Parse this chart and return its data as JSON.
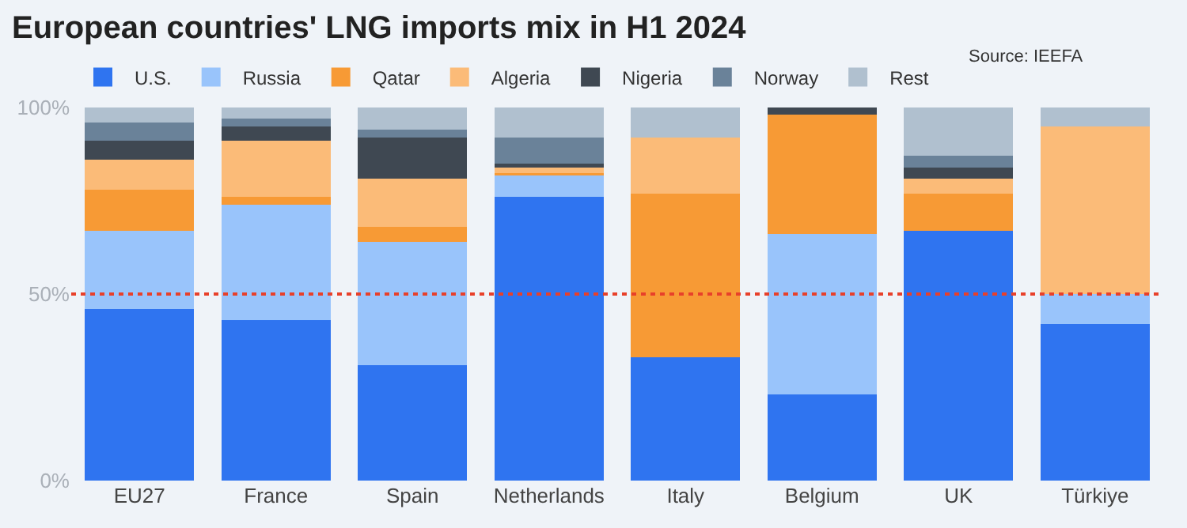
{
  "chart_data": {
    "type": "bar",
    "stacked": true,
    "title": "European countries' LNG imports mix in H1 2024",
    "categories": [
      "EU27",
      "France",
      "Spain",
      "Netherlands",
      "Italy",
      "Belgium",
      "UK",
      "Türkiye"
    ],
    "series": [
      {
        "name": "U.S.",
        "color": "#2f74f0",
        "values": [
          46,
          43,
          31,
          76,
          33,
          23,
          67,
          42
        ]
      },
      {
        "name": "Russia",
        "color": "#99c4fb",
        "values": [
          21,
          31,
          33,
          6,
          0,
          43,
          0,
          8
        ]
      },
      {
        "name": "Qatar",
        "color": "#f79a35",
        "values": [
          11,
          2,
          4,
          0.5,
          44,
          32,
          10,
          0
        ]
      },
      {
        "name": "Algeria",
        "color": "#fbbb78",
        "values": [
          8,
          15,
          13,
          1.5,
          15,
          0,
          4,
          45
        ]
      },
      {
        "name": "Nigeria",
        "color": "#3f4852",
        "values": [
          5,
          4,
          11,
          1,
          0,
          2,
          3,
          0
        ]
      },
      {
        "name": "Norway",
        "color": "#6a8299",
        "values": [
          5,
          2,
          2,
          7,
          0,
          0,
          3,
          0
        ]
      },
      {
        "name": "Rest",
        "color": "#b0c0cf",
        "values": [
          4,
          3,
          6,
          8,
          8,
          0,
          13,
          5
        ]
      }
    ],
    "ylim": [
      0,
      100
    ],
    "yticks": [
      {
        "value": 0,
        "label": "0%"
      },
      {
        "value": 50,
        "label": "50%"
      },
      {
        "value": 100,
        "label": "100%"
      }
    ],
    "ref_lines": [
      {
        "axis": "y",
        "value": 50,
        "color": "#e8402a",
        "line_style": "dotted"
      }
    ],
    "legend": "top left",
    "grid": false,
    "annotations": [
      "Source: IEEFA"
    ]
  }
}
